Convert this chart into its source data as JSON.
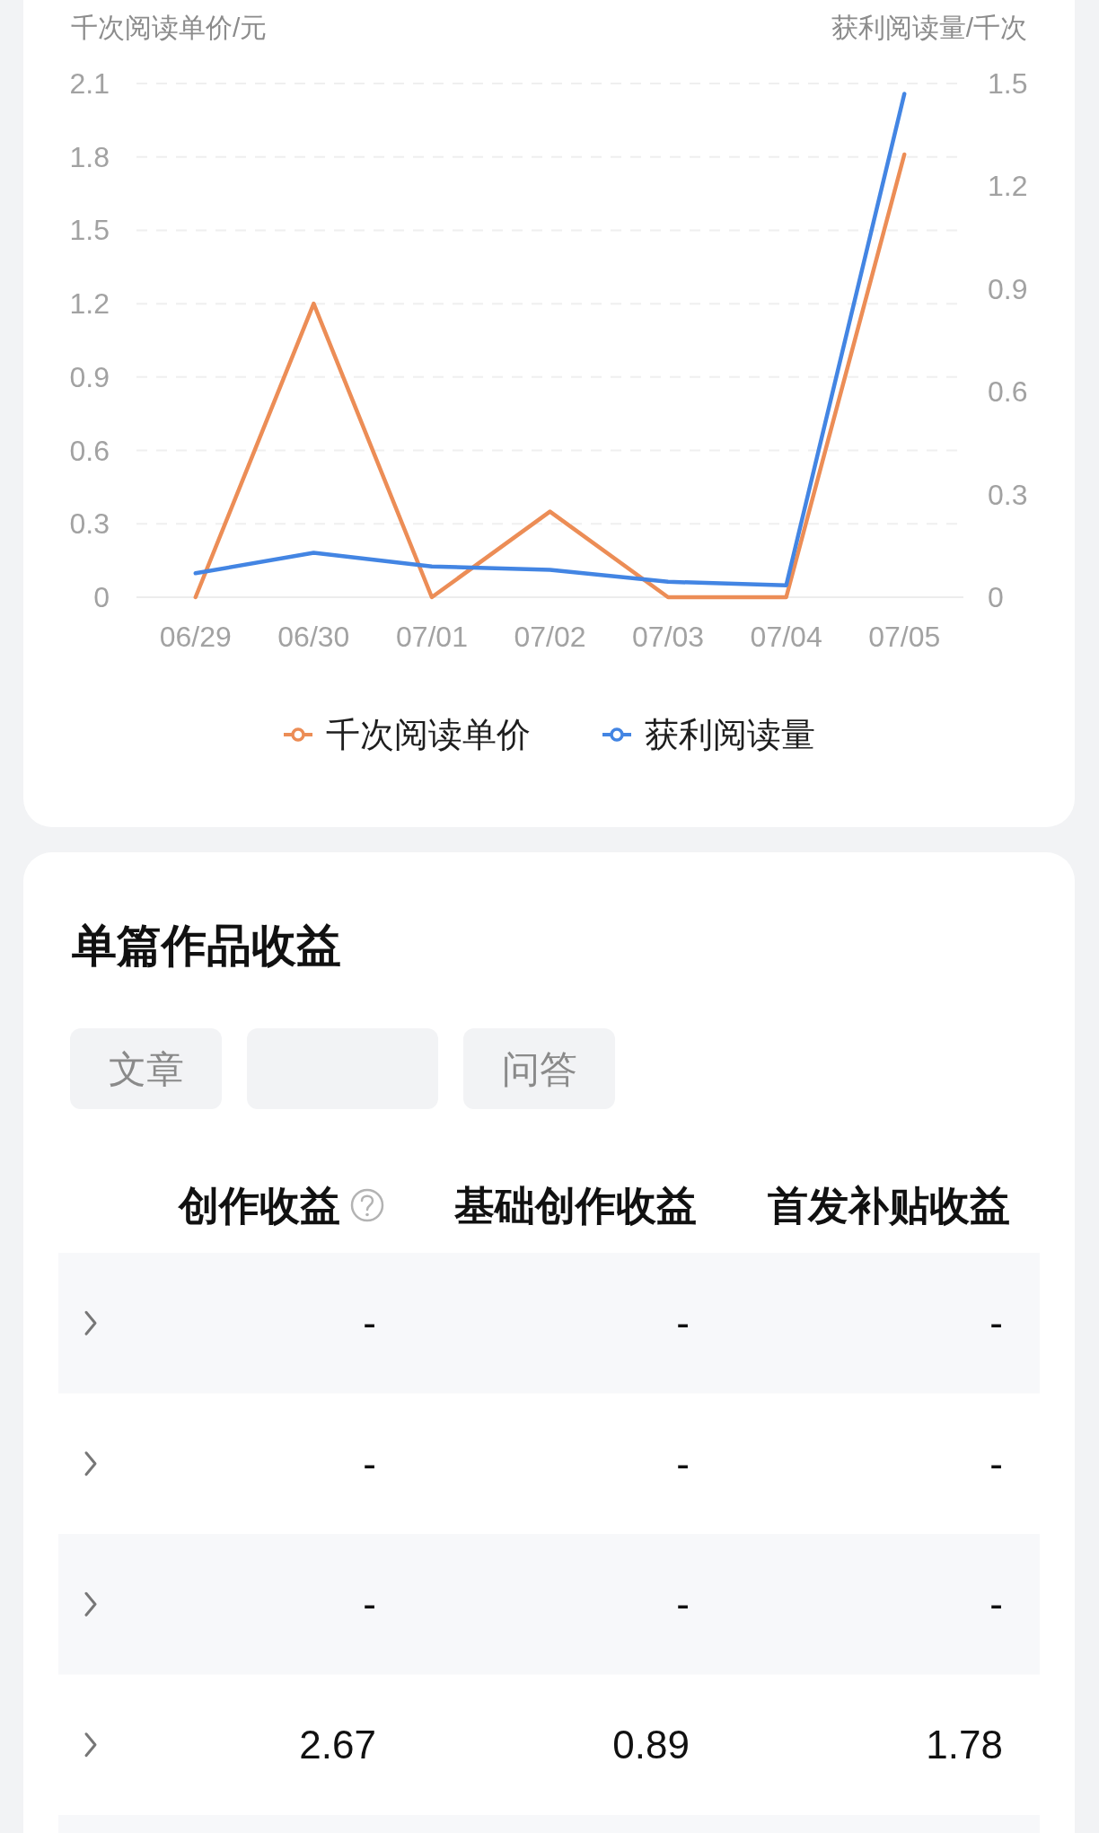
{
  "chart_data": [
    {
      "type": "line",
      "ylabel": "千次阅读单价/元",
      "y2label": "获利阅读量/千次",
      "categories": [
        "06/29",
        "06/30",
        "07/01",
        "07/02",
        "07/03",
        "07/04",
        "07/05"
      ],
      "series": [
        {
          "name": "千次阅读单价",
          "color": "#ec8d56",
          "values": [
            0,
            1.2,
            0,
            0.35,
            0,
            0,
            1.81
          ]
        },
        {
          "name": "获利阅读量",
          "color": "#4385e3",
          "axis": "y2",
          "values": [
            0.07,
            0.13,
            0.09,
            0.08,
            0.045,
            0.035,
            1.47
          ]
        }
      ],
      "ylim": [
        0,
        2.1
      ],
      "yticks": [
        0,
        0.3,
        0.6,
        0.9,
        1.2,
        1.5,
        1.8,
        2.1
      ],
      "y2lim": [
        0,
        1.5
      ],
      "y2ticks": [
        0,
        0.3,
        0.6,
        0.9,
        1.2,
        1.5
      ],
      "grid": "y",
      "legend": "bottom"
    },
    {
      "type": "other",
      "title": "单篇作品收益",
      "categories": [
        "文章",
        null,
        "问答"
      ],
      "annotations": [
        "创作收益",
        "基础创作收益",
        "首发补贴收益"
      ],
      "cell_labels": [
        [
          "-",
          "-",
          "-"
        ],
        [
          "-",
          "-",
          "-"
        ],
        [
          "-",
          "-",
          "-"
        ],
        [
          "2.67",
          "0.89",
          "1.78"
        ]
      ]
    }
  ]
}
